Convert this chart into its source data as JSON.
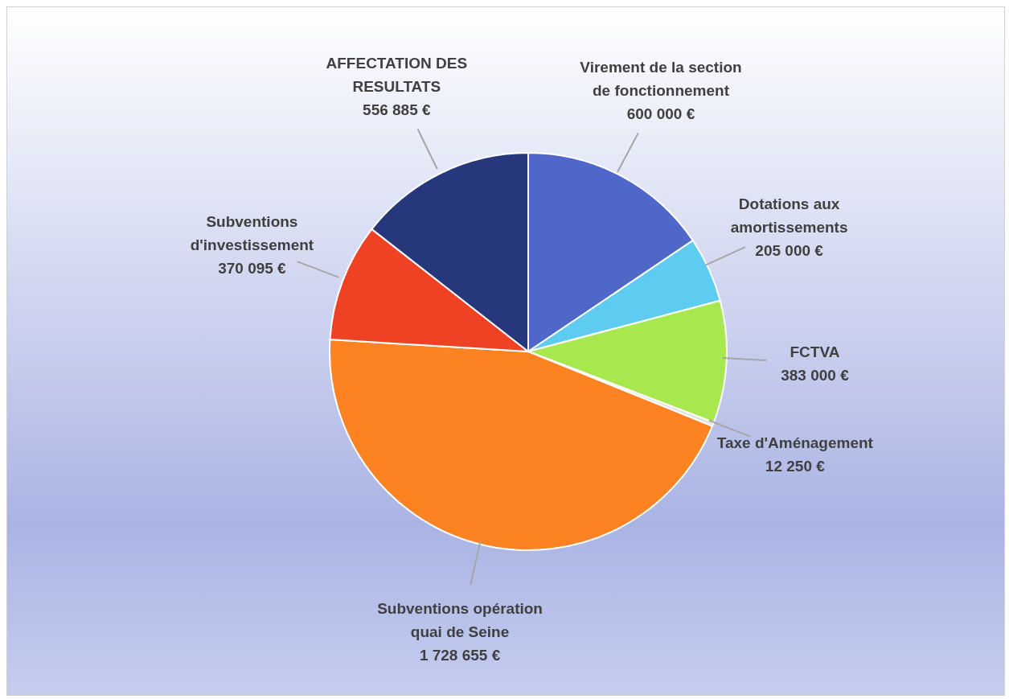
{
  "chart_data": {
    "type": "pie",
    "categories": [
      "Virement de la section de fonctionnement",
      "Dotations aux amortissements",
      "FCTVA",
      "Taxe d'Aménagement",
      "Subventions opération quai de Seine",
      "Subventions d'investissement",
      "AFFECTATION DES RESULTATS"
    ],
    "values": [
      600000,
      205000,
      383000,
      12250,
      1728655,
      370095,
      556885
    ],
    "colors": [
      "#4f67c8",
      "#5ecbf0",
      "#a8e84f",
      "#e0e0e0",
      "#fd8222",
      "#ef4123",
      "#26377c"
    ],
    "value_labels": [
      "600 000 €",
      "205 000 €",
      "383 000 €",
      "12 250 €",
      "1 728 655 €",
      "370 095 €",
      "556 885 €"
    ]
  }
}
